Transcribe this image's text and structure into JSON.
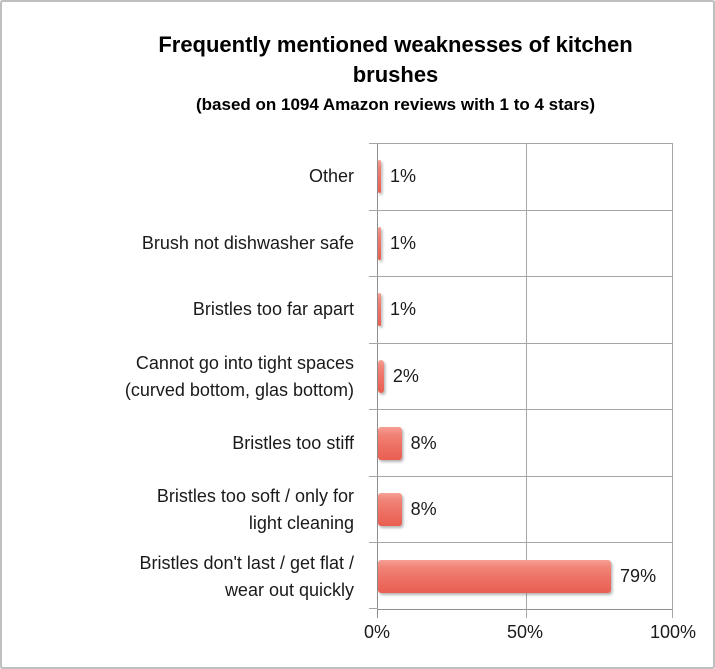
{
  "chart_data": {
    "type": "bar",
    "orientation": "horizontal",
    "title": "Frequently mentioned weaknesses of kitchen\nbrushes",
    "subtitle": "(based on 1094 Amazon reviews with 1 to 4 stars)",
    "categories": [
      "Other",
      "Brush not dishwasher safe",
      "Bristles too far apart",
      "Cannot go into tight spaces\n(curved bottom, glas bottom)",
      "Bristles too stiff",
      "Bristles too soft / only for\nlight cleaning",
      "Bristles don't last / get flat /\nwear out quickly"
    ],
    "values": [
      1,
      1,
      1,
      2,
      8,
      8,
      79
    ],
    "value_labels": [
      "1%",
      "1%",
      "1%",
      "2%",
      "8%",
      "8%",
      "79%"
    ],
    "x_ticks": [
      "0%",
      "50%",
      "100%"
    ],
    "x_tick_positions": [
      0,
      50,
      100
    ],
    "xlim": [
      0,
      100
    ],
    "grid": true,
    "legend": false,
    "colors": {
      "bar": "#EE7165",
      "bar_highlight": "#F6A094",
      "bar_shade": "#E85F51",
      "gridline": "#A6A6A6",
      "axis": "#8F8F8F",
      "text": "#1A1A1A",
      "frame_border": "#BFBFBF",
      "background": "#FFFFFF"
    }
  }
}
